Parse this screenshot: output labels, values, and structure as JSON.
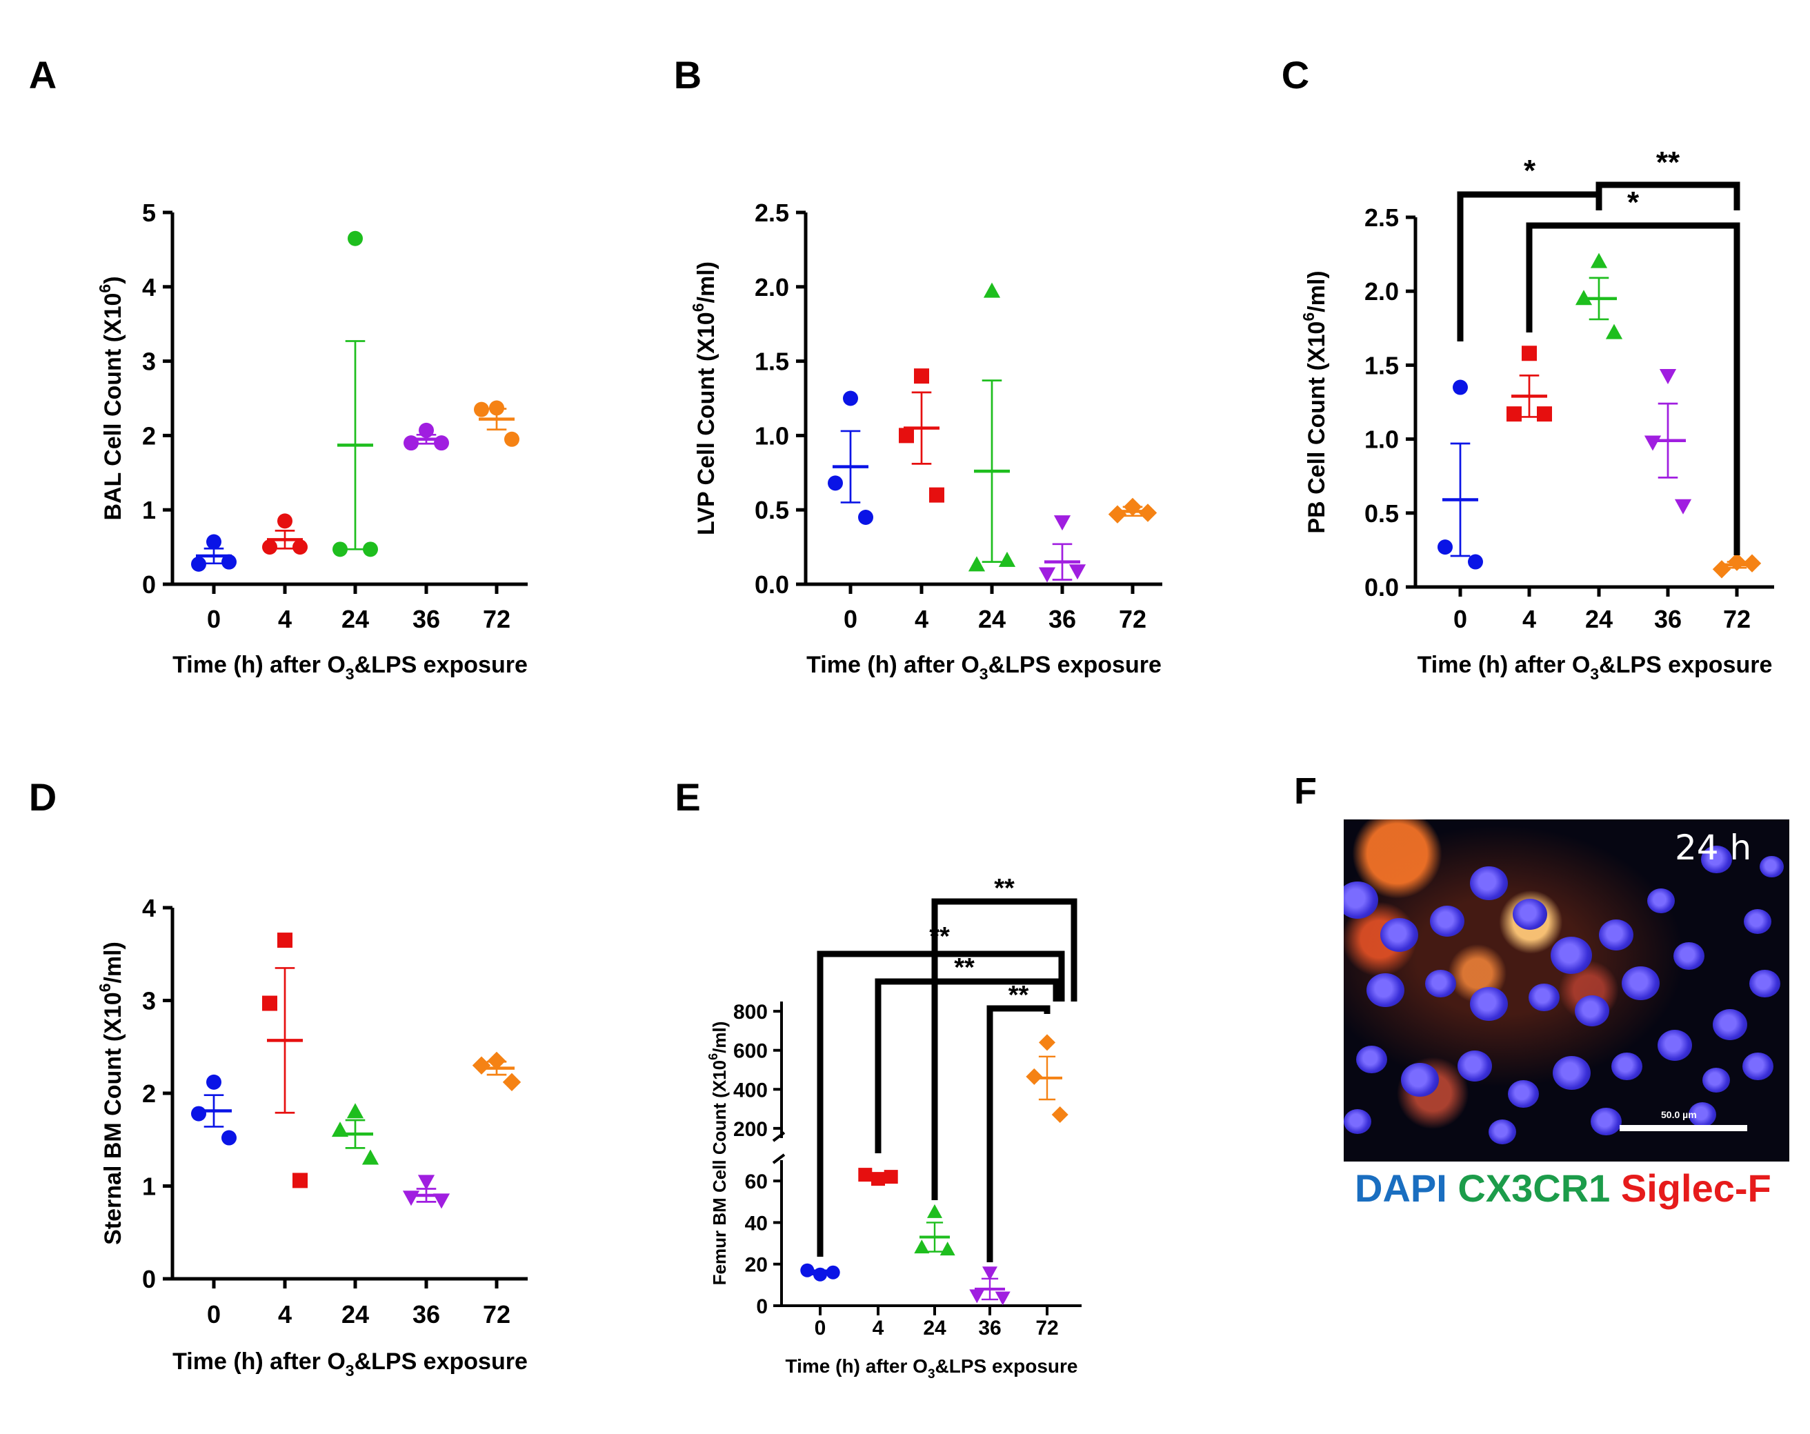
{
  "colors": {
    "0": "#0a14e6",
    "4": "#e60f0f",
    "24": "#1ebe1e",
    "36": "#a01ee0",
    "72": "#f58214"
  },
  "chart_data": [
    {
      "panel": "A",
      "type": "scatter",
      "xlabel_parts": [
        "Time (h) after O",
        "3",
        "&LPS exposure"
      ],
      "ylabel_parts": [
        "BAL Cell Count (X10",
        "6",
        ")"
      ],
      "categories": [
        "0",
        "4",
        "24",
        "36",
        "72"
      ],
      "markers": [
        "circle",
        "circle",
        "circle",
        "circle",
        "circle"
      ],
      "ylim": [
        0,
        5
      ],
      "yticks": [
        "0",
        "1",
        "2",
        "3",
        "4",
        "5"
      ],
      "ytick_values": [
        0,
        1,
        2,
        3,
        4,
        5
      ],
      "points": [
        [
          0.57,
          0.27,
          0.3
        ],
        [
          0.85,
          0.5,
          0.5
        ],
        [
          4.65,
          0.47,
          0.47
        ],
        [
          2.07,
          1.9,
          1.9
        ],
        [
          2.37,
          2.35,
          1.95
        ]
      ],
      "mean": [
        0.38,
        0.6,
        1.87,
        1.95,
        2.22
      ],
      "sem": [
        0.1,
        0.12,
        1.4,
        0.06,
        0.14
      ]
    },
    {
      "panel": "B",
      "type": "scatter",
      "xlabel_parts": [
        "Time (h) after O",
        "3",
        "&LPS exposure"
      ],
      "ylabel_parts": [
        "LVP Cell Count (X10",
        "6",
        "/ml)"
      ],
      "categories": [
        "0",
        "4",
        "24",
        "36",
        "72"
      ],
      "markers": [
        "circle",
        "square",
        "triangle-up",
        "triangle-down",
        "diamond"
      ],
      "ylim": [
        0,
        2.5
      ],
      "yticks": [
        "0.0",
        "0.5",
        "1.0",
        "1.5",
        "2.0",
        "2.5"
      ],
      "ytick_values": [
        0,
        0.5,
        1,
        1.5,
        2,
        2.5
      ],
      "points": [
        [
          1.25,
          0.68,
          0.45
        ],
        [
          1.4,
          1.0,
          0.6
        ],
        [
          1.97,
          0.13,
          0.16
        ],
        [
          0.42,
          0.07,
          0.09
        ],
        [
          0.52,
          0.47,
          0.48
        ]
      ],
      "mean": [
        0.79,
        1.05,
        0.76,
        0.15,
        0.49
      ],
      "sem": [
        0.24,
        0.24,
        0.61,
        0.12,
        0.03
      ]
    },
    {
      "panel": "C",
      "type": "scatter",
      "xlabel_parts": [
        "Time (h) after O",
        "3",
        "&LPS exposure"
      ],
      "ylabel_parts": [
        "PB Cell Count (X10",
        "6",
        "/ml)"
      ],
      "categories": [
        "0",
        "4",
        "24",
        "36",
        "72"
      ],
      "markers": [
        "circle",
        "square",
        "triangle-up",
        "triangle-down",
        "diamond"
      ],
      "ylim": [
        0,
        2.5
      ],
      "yticks": [
        "0.0",
        "0.5",
        "1.0",
        "1.5",
        "2.0",
        "2.5"
      ],
      "ytick_values": [
        0,
        0.5,
        1,
        1.5,
        2,
        2.5
      ],
      "points": [
        [
          1.35,
          0.27,
          0.17
        ],
        [
          1.58,
          1.17,
          1.17
        ],
        [
          2.2,
          1.95,
          1.72
        ],
        [
          1.43,
          0.98,
          0.55
        ],
        [
          0.17,
          0.12,
          0.16
        ]
      ],
      "mean": [
        0.59,
        1.29,
        1.95,
        0.99,
        0.15
      ],
      "sem": [
        0.38,
        0.14,
        0.14,
        0.25,
        0.02
      ],
      "annotations": [
        {
          "from": "0",
          "to": "24",
          "label": "*"
        },
        {
          "from": "24",
          "to": "72",
          "label": "**"
        },
        {
          "from": "4",
          "to": "72",
          "label": "*"
        }
      ]
    },
    {
      "panel": "D",
      "type": "scatter",
      "xlabel_parts": [
        "Time (h) after O",
        "3",
        "&LPS exposure"
      ],
      "ylabel_parts": [
        "Sternal BM Count (X10",
        "6",
        "/ml)"
      ],
      "categories": [
        "0",
        "4",
        "24",
        "36",
        "72"
      ],
      "markers": [
        "circle",
        "square",
        "triangle-up",
        "triangle-down",
        "diamond"
      ],
      "ylim": [
        0,
        4
      ],
      "yticks": [
        "0",
        "1",
        "2",
        "3",
        "4"
      ],
      "ytick_values": [
        0,
        1,
        2,
        3,
        4
      ],
      "points": [
        [
          2.12,
          1.78,
          1.52
        ],
        [
          3.65,
          2.97,
          1.06
        ],
        [
          1.8,
          1.6,
          1.3
        ],
        [
          1.05,
          0.88,
          0.85
        ],
        [
          2.35,
          2.3,
          2.12
        ]
      ],
      "mean": [
        1.81,
        2.57,
        1.56,
        0.9,
        2.27
      ],
      "sem": [
        0.17,
        0.78,
        0.15,
        0.07,
        0.07
      ]
    },
    {
      "panel": "E",
      "type": "scatter",
      "xlabel_parts": [
        "Time (h) after O",
        "3",
        "&LPS exposure"
      ],
      "ylabel_parts": [
        "Femur BM Cell Count (X10",
        "6",
        "/ml)"
      ],
      "categories": [
        "0",
        "4",
        "24",
        "36",
        "72"
      ],
      "markers": [
        "circle",
        "square",
        "triangle-up",
        "triangle-down",
        "diamond"
      ],
      "ylim_lower": [
        0,
        70
      ],
      "ylim_upper": [
        150,
        850
      ],
      "yticks_lower": [
        "0",
        "20",
        "40",
        "60"
      ],
      "ytick_values_lower": [
        0,
        20,
        40,
        60
      ],
      "yticks_upper": [
        "200",
        "400",
        "600",
        "800"
      ],
      "ytick_values_upper": [
        200,
        400,
        600,
        800
      ],
      "points": [
        [
          15,
          17,
          16
        ],
        [
          61,
          63,
          62
        ],
        [
          45,
          28,
          27
        ],
        [
          16,
          5,
          4
        ],
        [
          640,
          465,
          270
        ]
      ],
      "mean": [
        16,
        62,
        33,
        8,
        458
      ],
      "sem": [
        1,
        1,
        7,
        5,
        110
      ],
      "annotations": [
        {
          "from": "24",
          "to": "72",
          "label": "**"
        },
        {
          "from": "0",
          "to": "72",
          "label": "**"
        },
        {
          "from": "4",
          "to": "72",
          "label": "**"
        },
        {
          "from": "36",
          "to": "72",
          "label": "**"
        }
      ]
    }
  ],
  "image_panel": {
    "panel": "F",
    "time_label": "24 h",
    "scale_label": "50.0 µm",
    "legend": [
      {
        "text": "DAPI",
        "color": "#1a6ec0"
      },
      {
        "text": "CX3CR1",
        "color": "#1c9c4a"
      },
      {
        "text": "Siglec-F",
        "color": "#e61b1b"
      }
    ]
  }
}
